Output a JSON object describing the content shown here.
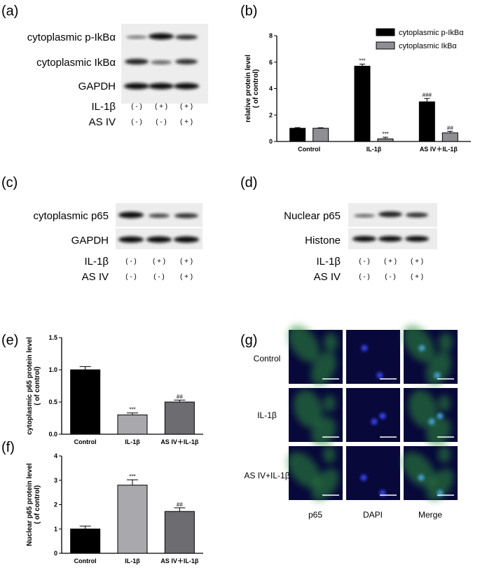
{
  "panels": {
    "a": "(a)",
    "b": "(b)",
    "c": "(c)",
    "d": "(d)",
    "e": "(e)",
    "f": "(f)",
    "g": "(g)"
  },
  "blot_a": {
    "rows": [
      "cytoplasmic p-IkBα",
      "cytoplasmic IkBα",
      "GAPDH"
    ],
    "treatments": [
      {
        "name": "IL-1β",
        "marks": [
          "( - )",
          "( + )",
          "( + )"
        ]
      },
      {
        "name": "AS IV",
        "marks": [
          "( - )",
          "( - )",
          "( + )"
        ]
      }
    ]
  },
  "blot_c": {
    "rows": [
      "cytoplasmic p65",
      "GAPDH"
    ],
    "treatments": [
      {
        "name": "IL-1β",
        "marks": [
          "( - )",
          "( + )",
          "( + )"
        ]
      },
      {
        "name": "AS IV",
        "marks": [
          "( - )",
          "( - )",
          "( + )"
        ]
      }
    ]
  },
  "blot_d": {
    "rows": [
      "Nuclear p65",
      "Histone"
    ],
    "treatments": [
      {
        "name": "IL-1β",
        "marks": [
          "( - )",
          "( + )",
          "( + )"
        ]
      },
      {
        "name": "AS IV",
        "marks": [
          "( - )",
          "( - )",
          "( + )"
        ]
      }
    ]
  },
  "microscopy": {
    "rows": [
      "Control",
      "IL-1β",
      "AS IV+IL-1β"
    ],
    "cols": [
      "p65",
      "DAPI",
      "Merge"
    ]
  },
  "colors": {
    "black_bar": "#000000",
    "grey_bar": "#8e8e93",
    "light_grey_bar": "#a8a8ad",
    "dark_grey_bar": "#6d6d71",
    "fluor_bg": "#08083a"
  },
  "chart_data": [
    {
      "id": "b",
      "type": "bar",
      "ylabel_lines": [
        "relative protein level",
        "( of control)"
      ],
      "ylim": [
        0,
        8
      ],
      "yticks": [
        0,
        2,
        4,
        6,
        8
      ],
      "categories": [
        "Control",
        "IL-1β",
        "AS IV＋IL-1β"
      ],
      "legend_position": "top-right",
      "series": [
        {
          "name": "cytoplasmic p-IkBα",
          "color": "#000000",
          "values": [
            1.0,
            5.7,
            3.0
          ],
          "errors": [
            0.05,
            0.15,
            0.25
          ],
          "annotations": [
            "",
            "***",
            "###"
          ]
        },
        {
          "name": "cytoplasmic IkBα",
          "color": "#8e8e93",
          "values": [
            1.0,
            0.2,
            0.65
          ],
          "errors": [
            0.04,
            0.12,
            0.12
          ],
          "annotations": [
            "",
            "***",
            "##"
          ]
        }
      ]
    },
    {
      "id": "e",
      "type": "bar",
      "ylabel_lines": [
        "cytoplasmic p65 protein level",
        "( of control)"
      ],
      "ylim": [
        0,
        1.5
      ],
      "yticks": [
        "0.0",
        "0.5",
        "1.0",
        "1.5"
      ],
      "categories": [
        "Control",
        "IL-1β",
        "AS IV＋IL-1β"
      ],
      "series": [
        {
          "values": [
            1.0,
            0.3,
            0.5
          ],
          "errors": [
            0.05,
            0.03,
            0.03
          ],
          "colors": [
            "#000000",
            "#a8a8ad",
            "#6d6d71"
          ],
          "annotations": [
            "",
            "***",
            "##"
          ]
        }
      ]
    },
    {
      "id": "f",
      "type": "bar",
      "ylabel_lines": [
        "Nuclear p65 protein level",
        "( of control)"
      ],
      "ylim": [
        0,
        4
      ],
      "yticks": [
        0,
        1,
        2,
        3,
        4
      ],
      "categories": [
        "Control",
        "IL-1β",
        "AS IV＋IL-1β"
      ],
      "series": [
        {
          "values": [
            1.0,
            2.8,
            1.72
          ],
          "errors": [
            0.12,
            0.22,
            0.15
          ],
          "colors": [
            "#000000",
            "#a8a8ad",
            "#6d6d71"
          ],
          "annotations": [
            "",
            "***",
            "##"
          ]
        }
      ]
    }
  ]
}
